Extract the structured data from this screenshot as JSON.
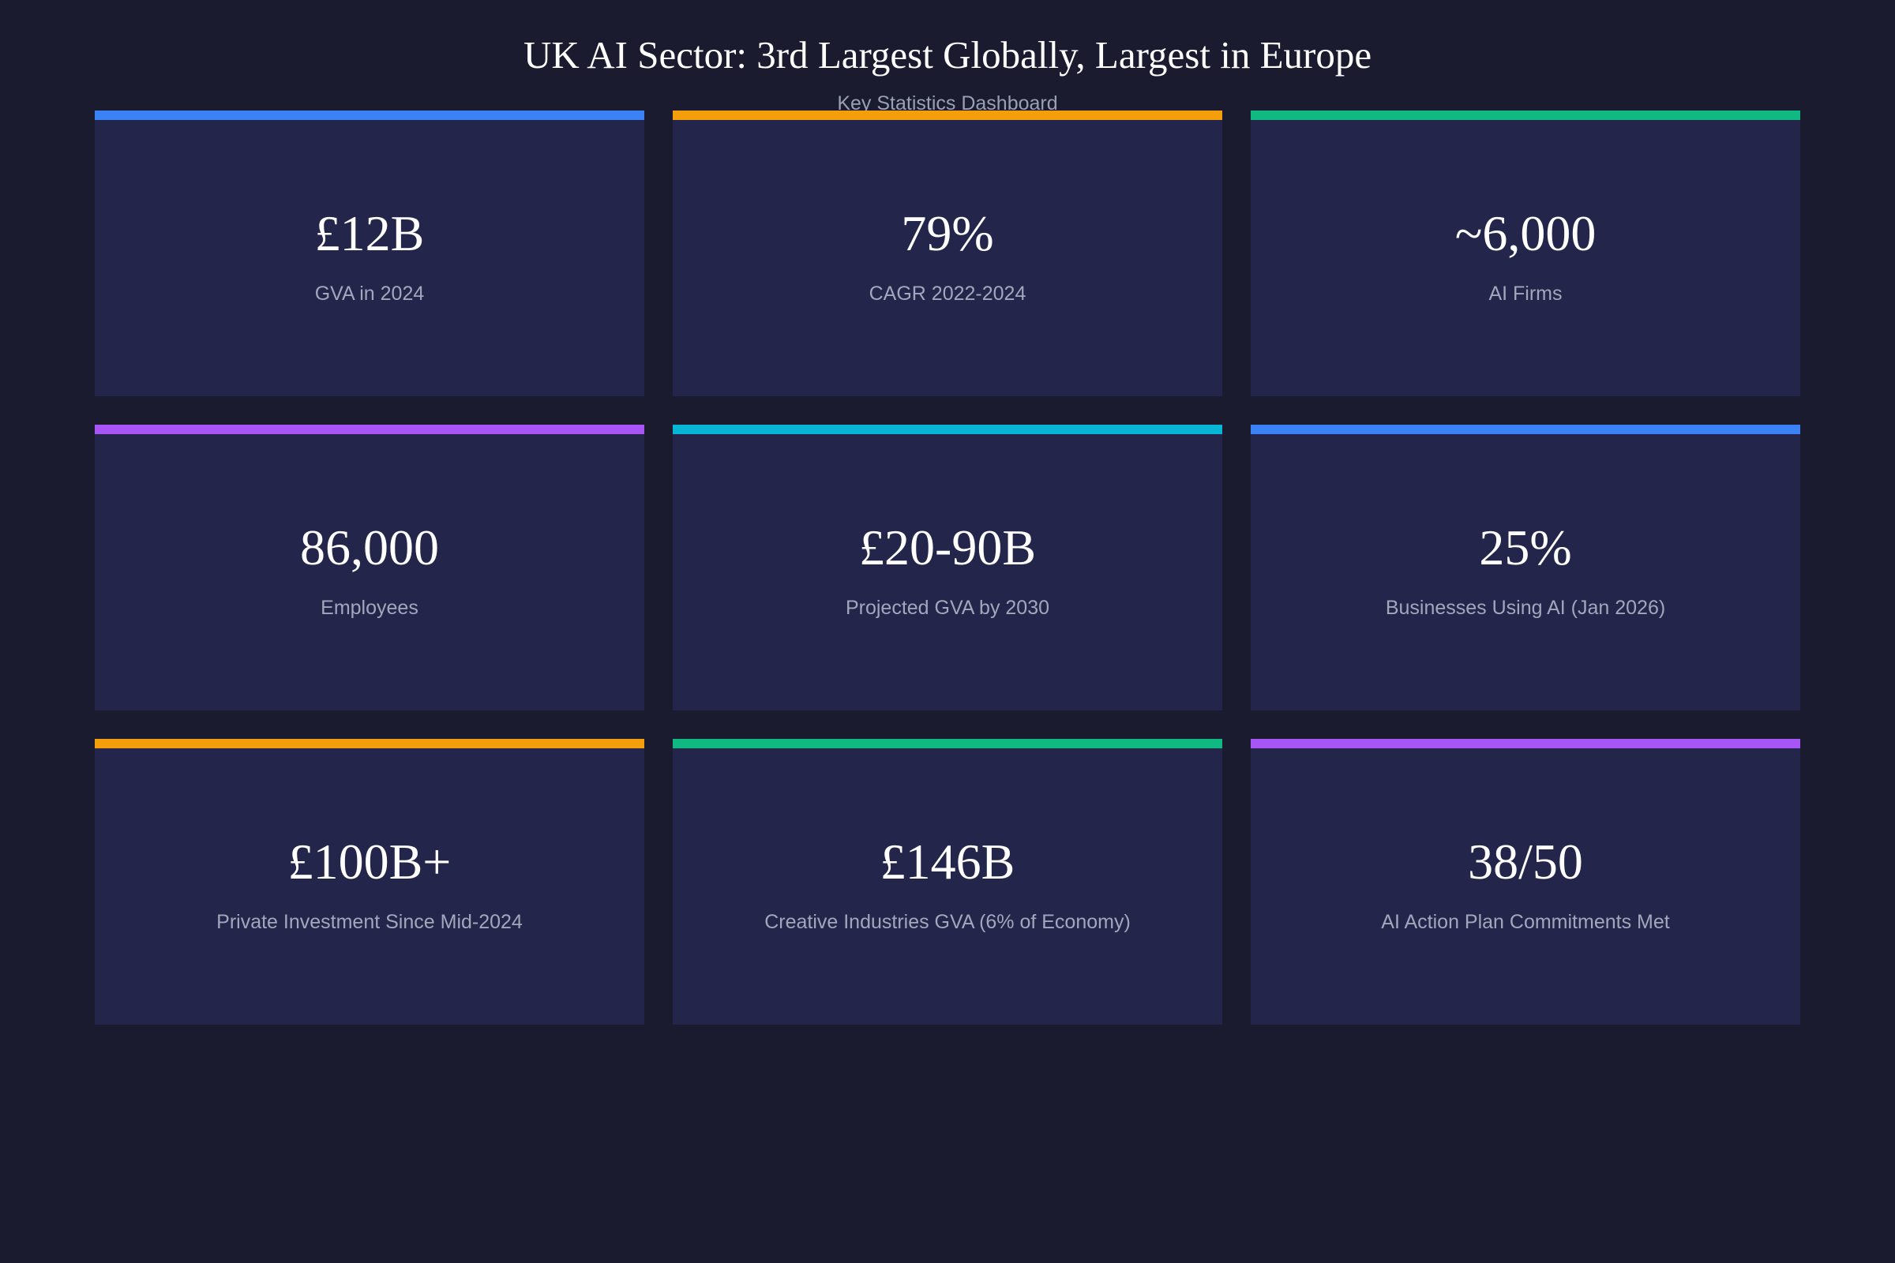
{
  "header": {
    "title": "UK AI Sector: 3rd Largest Globally, Largest in Europe",
    "subtitle": "Key Statistics Dashboard"
  },
  "colors": {
    "background": "#1a1b2e",
    "card_background": "#24254a",
    "blue": "#3b82f6",
    "orange": "#f59e0b",
    "green": "#10b981",
    "purple": "#a855f7",
    "cyan": "#06b6d4"
  },
  "cards": [
    {
      "value": "£12B",
      "label": "GVA in 2024",
      "accent": "#3b82f6"
    },
    {
      "value": "79%",
      "label": "CAGR 2022-2024",
      "accent": "#f59e0b"
    },
    {
      "value": "~6,000",
      "label": "AI Firms",
      "accent": "#10b981"
    },
    {
      "value": "86,000",
      "label": "Employees",
      "accent": "#a855f7"
    },
    {
      "value": "£20-90B",
      "label": "Projected GVA by 2030",
      "accent": "#06b6d4"
    },
    {
      "value": "25%",
      "label": "Businesses Using AI (Jan 2026)",
      "accent": "#3b82f6"
    },
    {
      "value": "£100B+",
      "label": "Private Investment Since Mid-2024",
      "accent": "#f59e0b"
    },
    {
      "value": "£146B",
      "label": "Creative Industries GVA (6% of Economy)",
      "accent": "#10b981"
    },
    {
      "value": "38/50",
      "label": "AI Action Plan Commitments Met",
      "accent": "#a855f7"
    }
  ]
}
